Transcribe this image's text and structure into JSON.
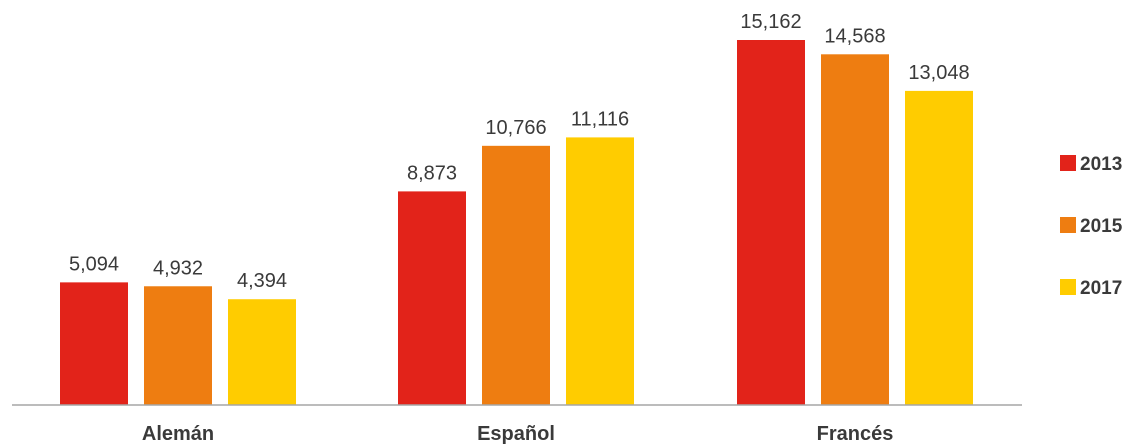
{
  "chart_data": {
    "type": "bar",
    "categories": [
      "Alemán",
      "Español",
      "Francés"
    ],
    "series": [
      {
        "name": "2013",
        "color": "#e2231a",
        "values": [
          5094,
          8873,
          15162
        ]
      },
      {
        "name": "2015",
        "color": "#ee7d11",
        "values": [
          4932,
          10766,
          14568
        ]
      },
      {
        "name": "2017",
        "color": "#ffcc00",
        "values": [
          4394,
          11116,
          13048
        ]
      }
    ],
    "data_labels": [
      [
        "5,094",
        "4,932",
        "4,394"
      ],
      [
        "8,873",
        "10,766",
        "11,116"
      ],
      [
        "15,162",
        "14,568",
        "13,048"
      ]
    ],
    "ylim": [
      0,
      15162
    ],
    "legend_position": "right",
    "grid": false,
    "axis_color": "#a6a6a6",
    "text_color": "#3a3a3a"
  }
}
